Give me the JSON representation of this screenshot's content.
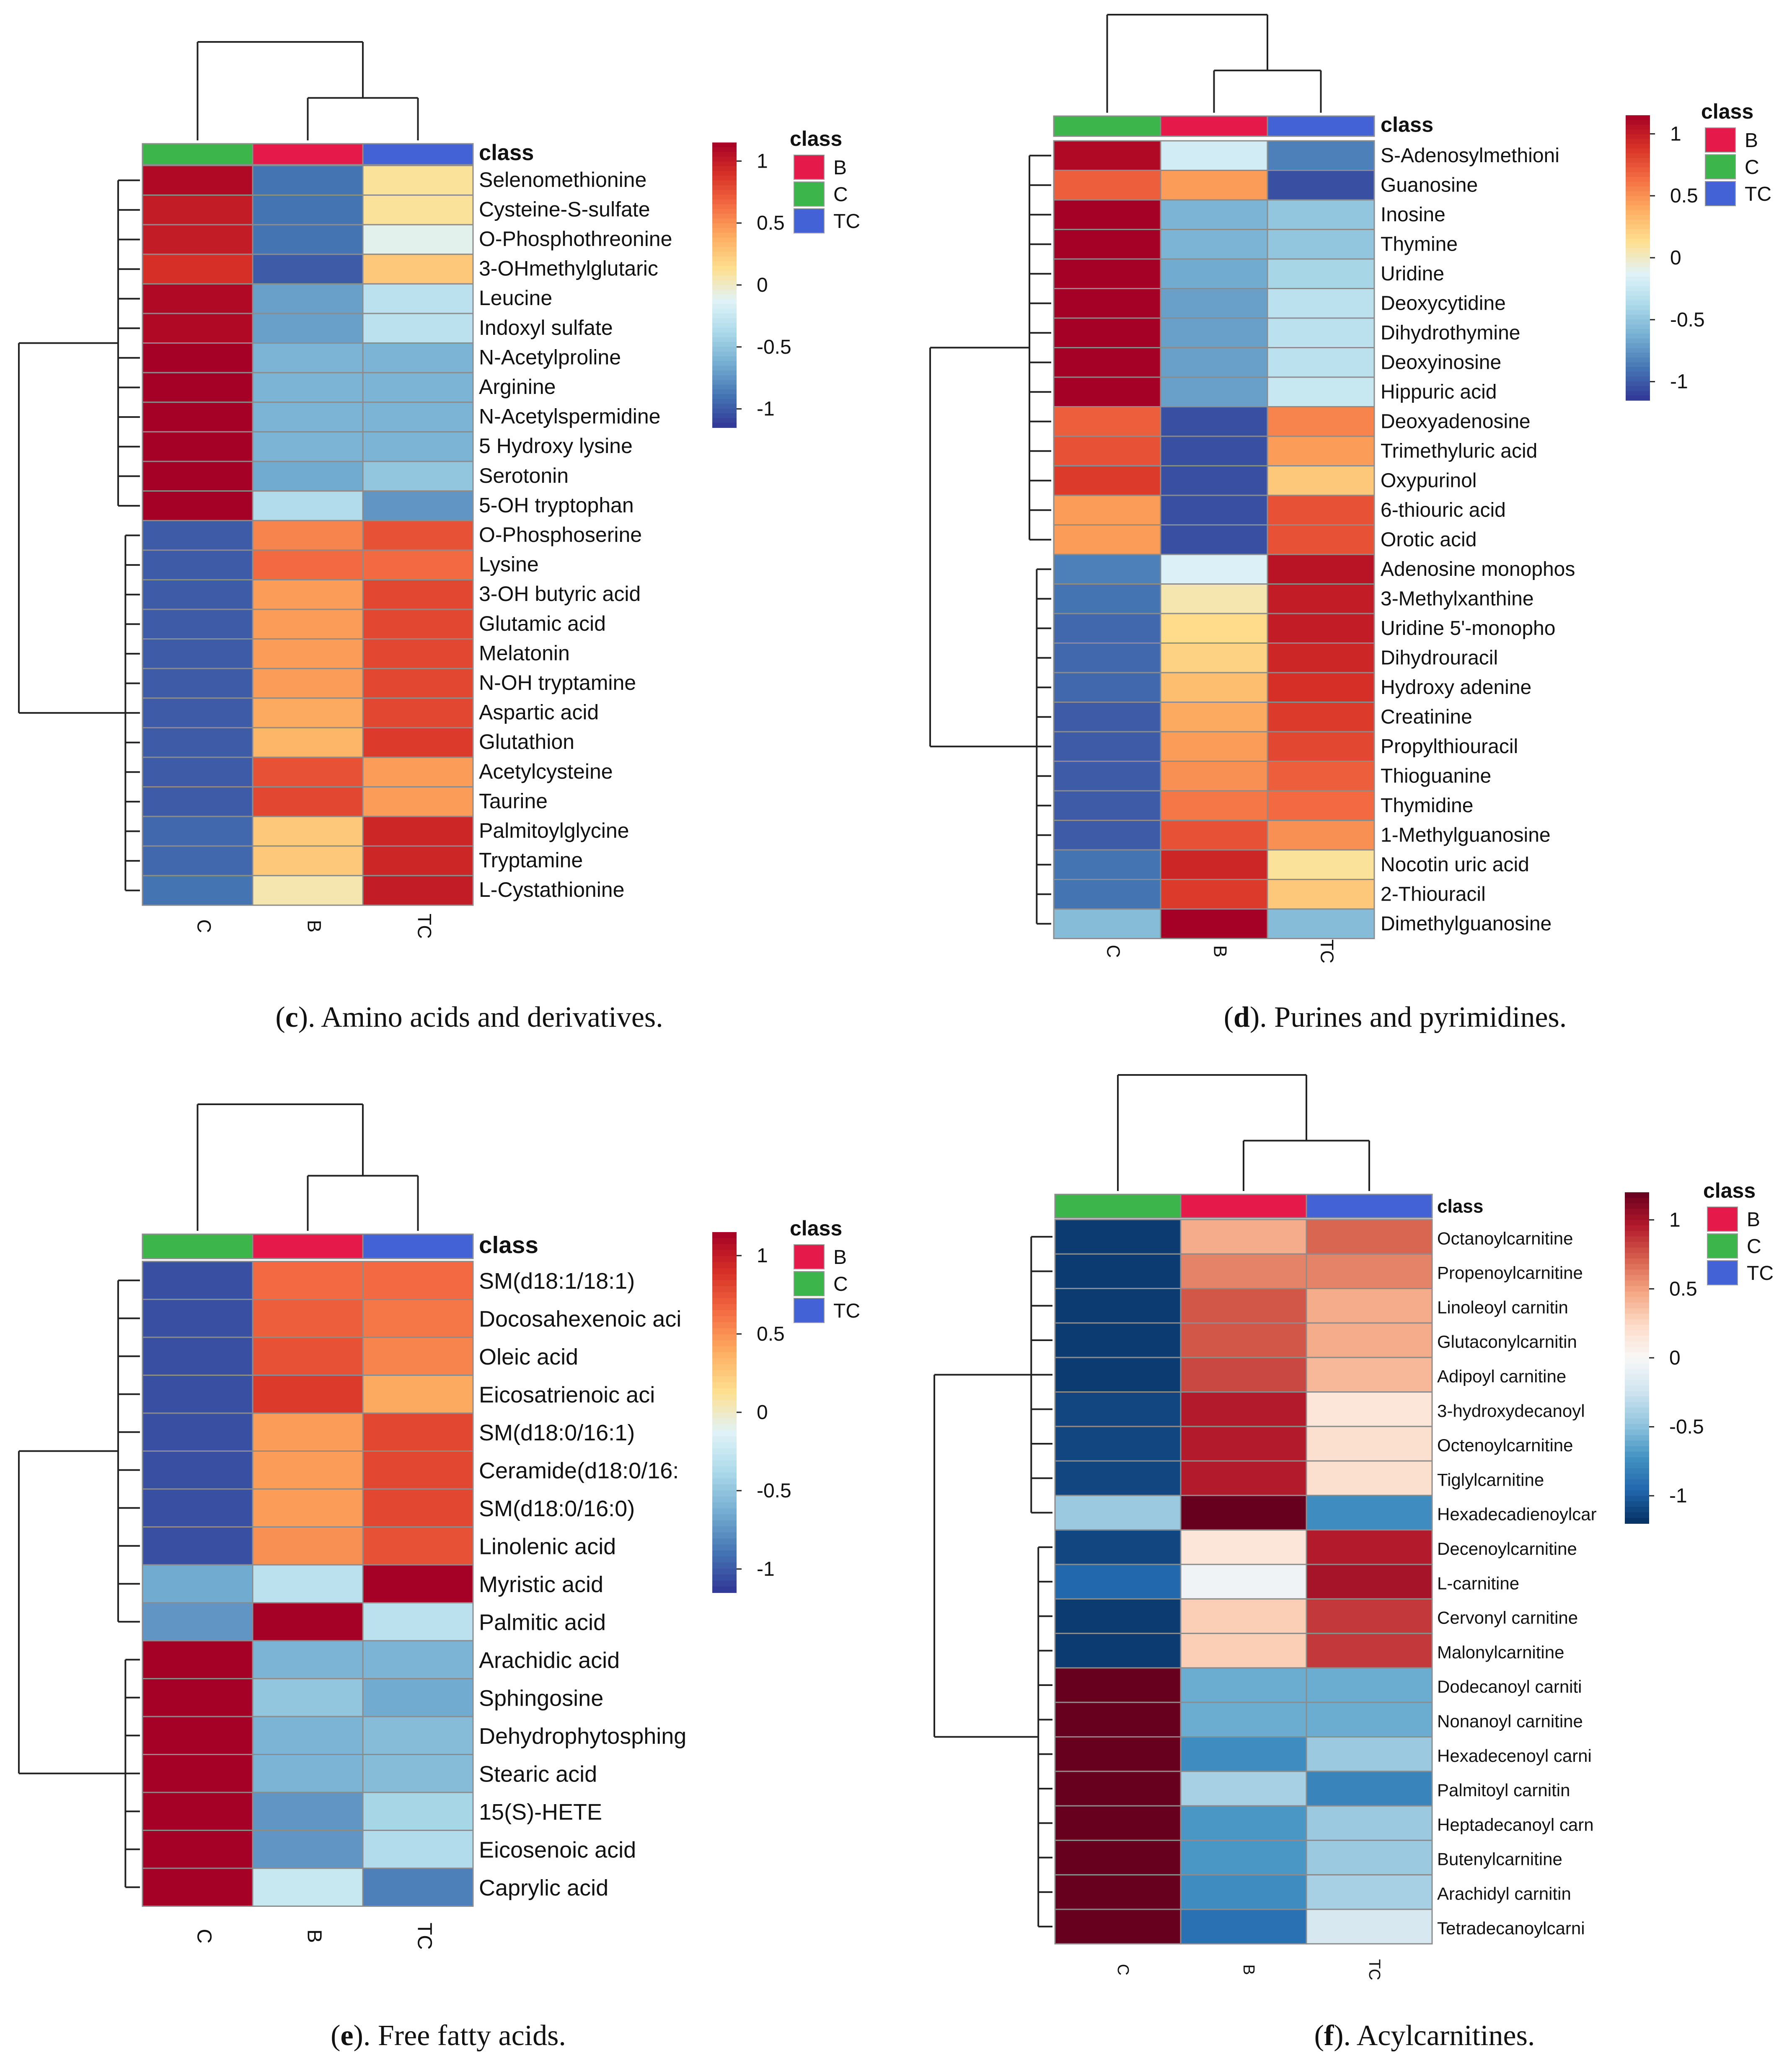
{
  "colors": {
    "B": "#e6194b",
    "C": "#3cb54a",
    "TC": "#4262d6",
    "scale": [
      "#313695",
      "#4575b4",
      "#74add1",
      "#abd9e9",
      "#e0f3f8",
      "#fee090",
      "#fdae61",
      "#f46d43",
      "#d73027",
      "#a50026"
    ]
  },
  "chart_data": [
    {
      "id": "c",
      "type": "heatmap",
      "caption": {
        "letter": "c",
        "text": "). Amino acids and derivatives."
      },
      "class_label": "class",
      "legend_title": "class",
      "legend_items": [
        "B",
        "C",
        "TC"
      ],
      "colorbar_ticks": [
        "1",
        "0.5",
        "0",
        "-0.5",
        "-1"
      ],
      "value_range": [
        -1.15,
        1.15
      ],
      "columns": [
        "C",
        "B",
        "TC"
      ],
      "rows": [
        "Selenomethionine",
        "Cysteine-S-sulfate",
        "O-Phosphothreonine",
        "3-OHmethylglutaric",
        "Leucine",
        "Indoxyl sulfate",
        "N-Acetylproline",
        "Arginine",
        "N-Acetylspermidine",
        "5 Hydroxy lysine",
        "Serotonin",
        "5-OH tryptophan",
        "O-Phosphoserine",
        "Lysine",
        "3-OH butyric acid",
        "Glutamic acid",
        "Melatonin",
        "N-OH tryptamine",
        "Aspartic acid",
        "Glutathion",
        "Acetylcysteine",
        "Taurine",
        "Palmitoylglycine",
        "Tryptamine",
        "L-Cystathionine"
      ],
      "values": [
        [
          1.1,
          -0.9,
          0.1
        ],
        [
          1.0,
          -0.9,
          0.1
        ],
        [
          1.0,
          -0.9,
          -0.1
        ],
        [
          0.9,
          -1.0,
          0.25
        ],
        [
          1.1,
          -0.7,
          -0.3
        ],
        [
          1.1,
          -0.7,
          -0.3
        ],
        [
          1.15,
          -0.6,
          -0.6
        ],
        [
          1.15,
          -0.6,
          -0.6
        ],
        [
          1.15,
          -0.6,
          -0.6
        ],
        [
          1.15,
          -0.6,
          -0.6
        ],
        [
          1.15,
          -0.65,
          -0.5
        ],
        [
          1.15,
          -0.35,
          -0.75
        ],
        [
          -1.0,
          0.55,
          0.75
        ],
        [
          -1.0,
          0.65,
          0.65
        ],
        [
          -1.0,
          0.45,
          0.8
        ],
        [
          -1.0,
          0.45,
          0.8
        ],
        [
          -1.0,
          0.45,
          0.8
        ],
        [
          -1.0,
          0.45,
          0.8
        ],
        [
          -1.0,
          0.4,
          0.8
        ],
        [
          -1.0,
          0.35,
          0.85
        ],
        [
          -1.0,
          0.75,
          0.45
        ],
        [
          -1.0,
          0.8,
          0.45
        ],
        [
          -0.95,
          0.25,
          0.95
        ],
        [
          -0.95,
          0.25,
          0.95
        ],
        [
          -0.9,
          0.05,
          1.0
        ]
      ]
    },
    {
      "id": "d",
      "type": "heatmap",
      "caption": {
        "letter": "d",
        "text": "). Purines and pyrimidines."
      },
      "class_label": "class",
      "legend_title": "class",
      "legend_items": [
        "B",
        "C",
        "TC"
      ],
      "colorbar_ticks": [
        "1",
        "0.5",
        "0",
        "-0.5",
        "-1"
      ],
      "value_range": [
        -1.15,
        1.15
      ],
      "columns": [
        "C",
        "B",
        "TC"
      ],
      "rows": [
        "S-Adenosylmethioni",
        "Guanosine",
        "Inosine",
        "Thymine",
        "Uridine",
        "Deoxycytidine",
        "Dihydrothymine",
        "Deoxyinosine",
        "Hippuric acid",
        "Deoxyadenosine",
        "Trimethyluric acid",
        "Oxypurinol",
        "6-thiouric acid",
        "Orotic acid",
        "Adenosine monophos",
        "3-Methylxanthine",
        "Uridine 5'-monopho",
        "Dihydrouracil",
        "Hydroxy adenine",
        "Creatinine",
        "Propylthiouracil",
        "Thioguanine",
        "Thymidine",
        "1-Methylguanosine",
        "Nocotin uric acid",
        "2-Thiouracil",
        "Dimethylguanosine"
      ],
      "values": [
        [
          1.1,
          -0.2,
          -0.85
        ],
        [
          0.7,
          0.45,
          -1.05
        ],
        [
          1.15,
          -0.6,
          -0.5
        ],
        [
          1.15,
          -0.6,
          -0.5
        ],
        [
          1.15,
          -0.65,
          -0.4
        ],
        [
          1.15,
          -0.7,
          -0.3
        ],
        [
          1.15,
          -0.7,
          -0.3
        ],
        [
          1.15,
          -0.7,
          -0.3
        ],
        [
          1.15,
          -0.7,
          -0.25
        ],
        [
          0.7,
          -1.05,
          0.55
        ],
        [
          0.75,
          -1.05,
          0.45
        ],
        [
          0.85,
          -1.05,
          0.25
        ],
        [
          0.45,
          -1.05,
          0.75
        ],
        [
          0.45,
          -1.05,
          0.75
        ],
        [
          -0.85,
          -0.15,
          1.05
        ],
        [
          -0.9,
          0.05,
          1.0
        ],
        [
          -0.95,
          0.15,
          1.0
        ],
        [
          -0.95,
          0.2,
          0.95
        ],
        [
          -0.95,
          0.3,
          0.9
        ],
        [
          -1.0,
          0.4,
          0.85
        ],
        [
          -1.0,
          0.45,
          0.8
        ],
        [
          -1.0,
          0.5,
          0.7
        ],
        [
          -1.0,
          0.6,
          0.65
        ],
        [
          -1.0,
          0.75,
          0.5
        ],
        [
          -0.9,
          0.95,
          0.1
        ],
        [
          -0.9,
          0.85,
          0.25
        ],
        [
          -0.55,
          1.15,
          -0.55
        ]
      ]
    },
    {
      "id": "e",
      "type": "heatmap",
      "caption": {
        "letter": "e",
        "text": "). Free fatty acids."
      },
      "class_label": "class",
      "legend_title": "class",
      "legend_items": [
        "B",
        "C",
        "TC"
      ],
      "colorbar_ticks": [
        "1",
        "0.5",
        "0",
        "-0.5",
        "-1"
      ],
      "value_range": [
        -1.15,
        1.15
      ],
      "columns": [
        "C",
        "B",
        "TC"
      ],
      "rows": [
        "SM(d18:1/18:1)",
        "Docosahexenoic aci",
        "Oleic acid",
        "Eicosatrienoic aci",
        "SM(d18:0/16:1)",
        "Ceramide(d18:0/16:",
        "SM(d18:0/16:0)",
        "Linolenic acid",
        "Myristic acid",
        "Palmitic acid",
        "Arachidic  acid",
        "Sphingosine",
        "Dehydrophytosphing",
        "Stearic acid",
        "15(S)-HETE",
        "Eicosenoic acid",
        "Caprylic acid"
      ],
      "values": [
        [
          -1.05,
          0.65,
          0.65
        ],
        [
          -1.05,
          0.7,
          0.6
        ],
        [
          -1.05,
          0.75,
          0.55
        ],
        [
          -1.05,
          0.85,
          0.4
        ],
        [
          -1.05,
          0.45,
          0.8
        ],
        [
          -1.05,
          0.45,
          0.8
        ],
        [
          -1.05,
          0.45,
          0.8
        ],
        [
          -1.05,
          0.5,
          0.75
        ],
        [
          -0.65,
          -0.3,
          1.15
        ],
        [
          -0.75,
          1.15,
          -0.3
        ],
        [
          1.15,
          -0.6,
          -0.6
        ],
        [
          1.15,
          -0.5,
          -0.65
        ],
        [
          1.15,
          -0.6,
          -0.55
        ],
        [
          1.15,
          -0.6,
          -0.55
        ],
        [
          1.15,
          -0.75,
          -0.4
        ],
        [
          1.15,
          -0.75,
          -0.35
        ],
        [
          1.15,
          -0.25,
          -0.85
        ]
      ]
    },
    {
      "id": "f",
      "type": "heatmap",
      "caption": {
        "letter": "f",
        "text": "). Acylcarnitines."
      },
      "class_label": "class",
      "legend_title": "class",
      "legend_items": [
        "B",
        "C",
        "TC"
      ],
      "colorbar_ticks": [
        "1",
        "0.5",
        "0",
        "-0.5",
        "-1"
      ],
      "value_range": [
        -1.2,
        1.2
      ],
      "palette": [
        "#053061",
        "#2166ac",
        "#4393c3",
        "#92c5de",
        "#d1e5f0",
        "#f7f7f7",
        "#fddbc7",
        "#f4a582",
        "#d6604d",
        "#b2182b",
        "#67001f"
      ],
      "columns": [
        "C",
        "B",
        "TC"
      ],
      "rows": [
        "Octanoylcarnitine",
        "Propenoylcarnitine",
        "Linoleoyl carnitin",
        "Glutaconylcarnitin",
        "Adipoyl carnitine",
        "3-hydroxydecanoyl",
        "Octenoylcarnitine",
        "Tiglylcarnitine",
        "Hexadecadienoylcar",
        "Decenoylcarnitine",
        "L-carnitine",
        "Cervonyl carnitine",
        "Malonylcarnitine",
        "Dodecanoyl carniti",
        "Nonanoyl carnitine",
        "Hexadecenoyl carni",
        "Palmitoyl carnitin",
        "Heptadecanoyl carn",
        "Butenylcarnitine",
        "Arachidyl carnitin",
        "Tetradecanoylcarni"
      ],
      "values": [
        [
          -1.15,
          0.45,
          0.7
        ],
        [
          -1.15,
          0.6,
          0.6
        ],
        [
          -1.15,
          0.75,
          0.45
        ],
        [
          -1.15,
          0.75,
          0.45
        ],
        [
          -1.15,
          0.8,
          0.4
        ],
        [
          -1.1,
          0.95,
          0.15
        ],
        [
          -1.1,
          0.95,
          0.2
        ],
        [
          -1.1,
          0.95,
          0.2
        ],
        [
          -0.45,
          1.2,
          -0.75
        ],
        [
          -1.1,
          0.15,
          0.95
        ],
        [
          -0.95,
          -0.05,
          1.0
        ],
        [
          -1.15,
          0.3,
          0.85
        ],
        [
          -1.15,
          0.3,
          0.85
        ],
        [
          1.2,
          -0.6,
          -0.6
        ],
        [
          1.2,
          -0.6,
          -0.6
        ],
        [
          1.2,
          -0.75,
          -0.45
        ],
        [
          1.2,
          -0.4,
          -0.8
        ],
        [
          1.2,
          -0.7,
          -0.45
        ],
        [
          1.2,
          -0.7,
          -0.45
        ],
        [
          1.2,
          -0.75,
          -0.4
        ],
        [
          1.2,
          -0.9,
          -0.2
        ]
      ]
    }
  ]
}
